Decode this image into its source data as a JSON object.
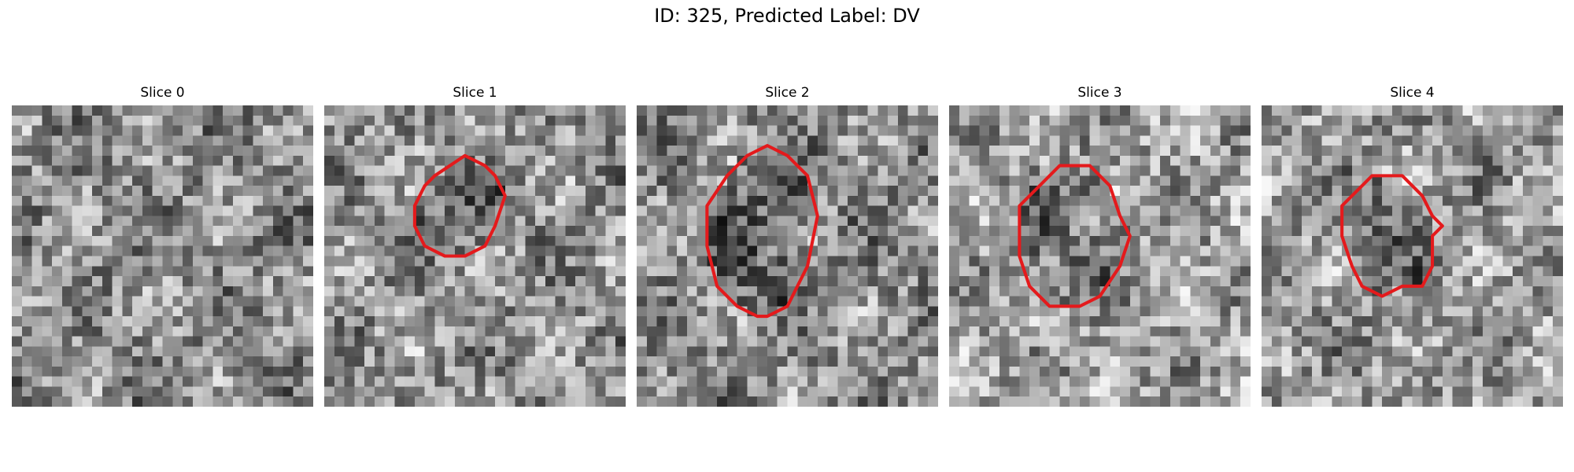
{
  "figure": {
    "title": "ID: 325, Predicted Label: DV"
  },
  "colors": {
    "contour": "#e41a1c"
  },
  "slices": [
    {
      "title": "Slice 0",
      "seed": 11,
      "base": 0.55,
      "has_contour": false,
      "contour": []
    },
    {
      "title": "Slice 1",
      "seed": 23,
      "base": 0.58,
      "has_contour": true,
      "contour": [
        [
          11,
          7
        ],
        [
          14,
          5
        ],
        [
          16,
          6
        ],
        [
          17,
          7
        ],
        [
          18,
          9
        ],
        [
          17,
          12
        ],
        [
          16,
          14
        ],
        [
          14,
          15
        ],
        [
          12,
          15
        ],
        [
          10,
          14
        ],
        [
          9,
          12
        ],
        [
          9,
          10
        ],
        [
          10,
          8
        ]
      ]
    },
    {
      "title": "Slice 2",
      "seed": 37,
      "base": 0.55,
      "has_contour": true,
      "contour": [
        [
          13,
          4
        ],
        [
          15,
          5
        ],
        [
          17,
          7
        ],
        [
          18,
          11
        ],
        [
          17,
          16
        ],
        [
          15,
          20
        ],
        [
          13,
          21
        ],
        [
          12,
          21
        ],
        [
          10,
          20
        ],
        [
          8,
          18
        ],
        [
          7,
          14
        ],
        [
          7,
          10
        ],
        [
          9,
          7
        ],
        [
          11,
          5
        ]
      ]
    },
    {
      "title": "Slice 3",
      "seed": 51,
      "base": 0.62,
      "has_contour": true,
      "contour": [
        [
          11,
          6
        ],
        [
          14,
          6
        ],
        [
          16,
          8
        ],
        [
          17,
          11
        ],
        [
          18,
          13
        ],
        [
          17,
          16
        ],
        [
          15,
          19
        ],
        [
          13,
          20
        ],
        [
          10,
          20
        ],
        [
          8,
          18
        ],
        [
          7,
          15
        ],
        [
          7,
          10
        ],
        [
          9,
          8
        ]
      ]
    },
    {
      "title": "Slice 4",
      "seed": 73,
      "base": 0.6,
      "has_contour": true,
      "contour": [
        [
          11,
          7
        ],
        [
          14,
          7
        ],
        [
          16,
          9
        ],
        [
          17,
          11
        ],
        [
          18,
          12
        ],
        [
          17,
          13
        ],
        [
          17,
          16
        ],
        [
          16,
          18
        ],
        [
          14,
          18
        ],
        [
          12,
          19
        ],
        [
          10,
          18
        ],
        [
          9,
          16
        ],
        [
          8,
          13
        ],
        [
          8,
          10
        ],
        [
          10,
          8
        ]
      ]
    }
  ]
}
